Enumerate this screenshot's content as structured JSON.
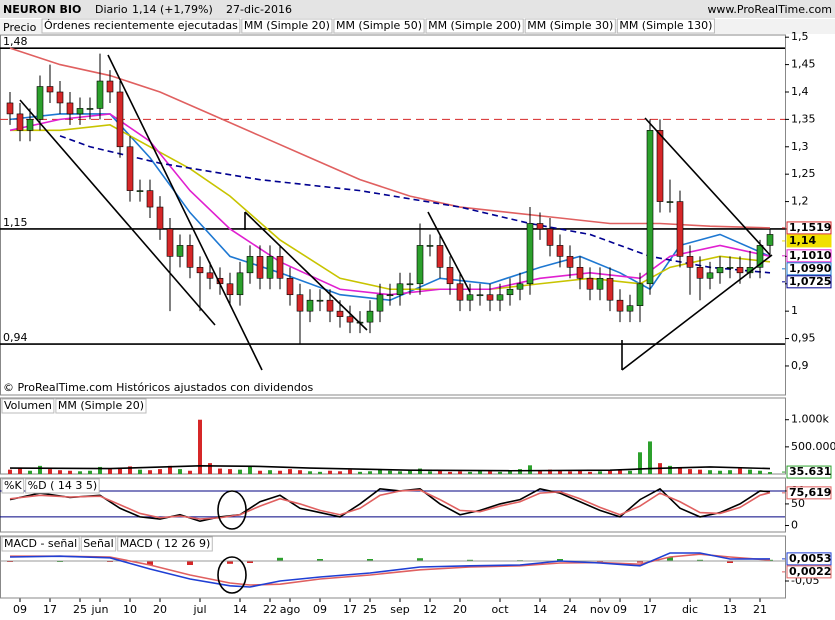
{
  "header": {
    "title": "NEURON BIO",
    "period": "Diario",
    "change": "1,14 (+1,79%)",
    "date": "27-dic-2016",
    "site": "www.ProRealTime.com"
  },
  "chart_data": [
    {
      "type": "candlestick",
      "legend_label": "Precio",
      "legend_extra": {
        "name": "Órdenes recientemente ejecutadas",
        "color": "#e06060"
      },
      "footnote": "© ProRealTime.com Históricos ajustados con dividendos",
      "categories": [
        null,
        "09",
        null,
        null,
        "17",
        null,
        null,
        "25",
        null,
        "jun",
        null,
        null,
        "10",
        null,
        null,
        "20",
        null,
        null,
        null,
        "jul",
        null,
        null,
        null,
        "14",
        null,
        null,
        "22",
        null,
        "ago",
        null,
        null,
        "09",
        null,
        null,
        "17",
        null,
        "25",
        null,
        null,
        "sep",
        null,
        null,
        "12",
        null,
        null,
        "20",
        null,
        null,
        null,
        "oct",
        null,
        null,
        null,
        "14",
        null,
        null,
        "24",
        null,
        null,
        "nov",
        null,
        "09",
        null,
        null,
        "17",
        null,
        null,
        null,
        "dic",
        null,
        null,
        null,
        "13",
        null,
        null,
        "21",
        null
      ],
      "open": [
        1.38,
        1.36,
        1.33,
        1.35,
        1.41,
        1.4,
        1.38,
        1.36,
        1.37,
        1.37,
        1.42,
        1.4,
        1.3,
        1.22,
        1.22,
        1.19,
        1.15,
        1.1,
        1.12,
        1.08,
        1.07,
        1.06,
        1.05,
        1.03,
        1.07,
        1.1,
        1.06,
        1.1,
        1.06,
        1.03,
        1.0,
        1.02,
        1.02,
        1.0,
        0.99,
        0.98,
        0.98,
        1.0,
        1.03,
        1.03,
        1.05,
        1.05,
        1.12,
        1.12,
        1.08,
        1.05,
        1.02,
        1.03,
        1.03,
        1.02,
        1.03,
        1.04,
        1.05,
        1.16,
        1.15,
        1.12,
        1.1,
        1.08,
        1.06,
        1.04,
        1.06,
        1.02,
        1.0,
        1.01,
        1.05,
        1.33,
        1.2,
        1.2,
        1.1,
        1.08,
        1.06,
        1.07,
        1.08,
        1.08,
        1.07,
        1.08,
        1.12
      ],
      "high": [
        1.4,
        1.38,
        1.37,
        1.43,
        1.45,
        1.42,
        1.4,
        1.39,
        1.39,
        1.47,
        1.44,
        1.42,
        1.32,
        1.24,
        1.24,
        1.21,
        1.17,
        1.14,
        1.14,
        1.1,
        1.09,
        1.08,
        1.07,
        1.09,
        1.12,
        1.12,
        1.12,
        1.12,
        1.08,
        1.05,
        1.04,
        1.04,
        1.04,
        1.02,
        1.01,
        1.0,
        1.02,
        1.05,
        1.05,
        1.07,
        1.07,
        1.16,
        1.14,
        1.14,
        1.1,
        1.07,
        1.05,
        1.05,
        1.05,
        1.05,
        1.06,
        1.07,
        1.19,
        1.18,
        1.17,
        1.14,
        1.12,
        1.1,
        1.08,
        1.08,
        1.08,
        1.04,
        1.03,
        1.07,
        1.35,
        1.35,
        1.24,
        1.22,
        1.12,
        1.1,
        1.09,
        1.1,
        1.1,
        1.1,
        1.11,
        1.13,
        1.15
      ],
      "low": [
        1.34,
        1.31,
        1.31,
        1.33,
        1.38,
        1.36,
        1.34,
        1.34,
        1.35,
        1.35,
        1.38,
        1.28,
        1.2,
        1.2,
        1.17,
        1.13,
        1.0,
        1.08,
        1.06,
        1.0,
        1.04,
        1.03,
        1.01,
        1.01,
        1.05,
        1.04,
        1.04,
        1.04,
        1.01,
        0.94,
        0.98,
        1.0,
        0.98,
        0.97,
        0.96,
        0.96,
        0.96,
        0.98,
        1.01,
        1.01,
        1.03,
        1.03,
        1.1,
        1.06,
        1.03,
        1.0,
        1.0,
        1.01,
        1.0,
        1.0,
        1.01,
        1.02,
        1.03,
        1.13,
        1.1,
        1.08,
        1.06,
        1.04,
        1.02,
        1.02,
        1.0,
        0.98,
        0.98,
        0.98,
        1.03,
        1.18,
        1.18,
        1.08,
        1.03,
        1.02,
        1.04,
        1.05,
        1.06,
        1.05,
        1.06,
        1.06,
        1.1
      ],
      "close": [
        1.36,
        1.33,
        1.35,
        1.41,
        1.4,
        1.38,
        1.36,
        1.37,
        1.37,
        1.42,
        1.4,
        1.3,
        1.22,
        1.22,
        1.19,
        1.15,
        1.1,
        1.12,
        1.08,
        1.07,
        1.06,
        1.05,
        1.03,
        1.07,
        1.1,
        1.06,
        1.1,
        1.06,
        1.03,
        1.0,
        1.02,
        1.02,
        1.0,
        0.99,
        0.98,
        0.98,
        1.0,
        1.03,
        1.03,
        1.05,
        1.05,
        1.12,
        1.12,
        1.08,
        1.05,
        1.02,
        1.03,
        1.03,
        1.02,
        1.03,
        1.04,
        1.05,
        1.16,
        1.15,
        1.12,
        1.1,
        1.08,
        1.06,
        1.04,
        1.06,
        1.02,
        1.0,
        1.01,
        1.05,
        1.33,
        1.2,
        1.2,
        1.1,
        1.08,
        1.06,
        1.07,
        1.08,
        1.08,
        1.07,
        1.08,
        1.12,
        1.14
      ],
      "up_color": "#2ca02c",
      "down_color": "#d62728",
      "ylim": [
        0.847,
        1.504
      ],
      "yticks": [
        {
          "value": 1.5,
          "label": "1,5"
        },
        {
          "value": 1.45,
          "label": "1,45"
        },
        {
          "value": 1.4,
          "label": "1,4"
        },
        {
          "value": 1.35,
          "label": "1,35"
        },
        {
          "value": 1.3,
          "label": "1,3"
        },
        {
          "value": 1.25,
          "label": "1,25"
        },
        {
          "value": 1.2,
          "label": "1,2"
        },
        {
          "value": 1.15,
          "label": "1,15"
        },
        {
          "value": 1.1,
          "label": "1,1"
        },
        {
          "value": 1.05,
          "label": "1,05"
        },
        1,
        {
          "value": 0.95,
          "label": "0,95"
        },
        {
          "value": 0.9,
          "label": "0,9"
        }
      ],
      "levels": [
        {
          "value": 1.48,
          "label": "1,48"
        },
        {
          "value": 1.15,
          "label": "1,15"
        },
        {
          "value": 0.94,
          "label": "0,94"
        }
      ],
      "dashed_level": {
        "value": 1.35,
        "color": "#d62728"
      },
      "series": [
        {
          "name": "MM (Simple 20)",
          "color": "#1e78d2",
          "x": [
            0,
            5,
            10,
            14,
            18,
            22,
            27,
            33,
            38,
            43,
            48,
            53,
            57,
            61,
            64,
            67,
            71,
            76
          ],
          "values": [
            1.35,
            1.36,
            1.36,
            1.28,
            1.18,
            1.1,
            1.07,
            1.03,
            1.02,
            1.06,
            1.05,
            1.08,
            1.1,
            1.07,
            1.04,
            1.12,
            1.14,
            1.1
          ]
        },
        {
          "name": "MM (Simple 50)",
          "color": "#c8c400",
          "x": [
            0,
            5,
            10,
            14,
            18,
            22,
            27,
            33,
            38,
            43,
            48,
            53,
            58,
            63,
            66,
            71,
            76
          ],
          "values": [
            1.33,
            1.33,
            1.34,
            1.3,
            1.26,
            1.21,
            1.13,
            1.06,
            1.04,
            1.04,
            1.04,
            1.05,
            1.06,
            1.05,
            1.08,
            1.1,
            1.09
          ]
        },
        {
          "name": "MM (Simple 200)",
          "color": "#e06060",
          "x": [
            0,
            5,
            10,
            15,
            20,
            25,
            30,
            35,
            40,
            45,
            50,
            55,
            60,
            65,
            70,
            76
          ],
          "values": [
            1.48,
            1.45,
            1.43,
            1.4,
            1.36,
            1.32,
            1.28,
            1.24,
            1.21,
            1.19,
            1.18,
            1.17,
            1.16,
            1.16,
            1.155,
            1.152
          ]
        },
        {
          "name": "MM (Simple 30)",
          "color": "#e020d0",
          "x": [
            0,
            5,
            10,
            14,
            18,
            22,
            27,
            33,
            38,
            43,
            48,
            53,
            58,
            63,
            66,
            71,
            76
          ],
          "values": [
            1.33,
            1.35,
            1.36,
            1.31,
            1.22,
            1.15,
            1.09,
            1.04,
            1.03,
            1.04,
            1.04,
            1.06,
            1.07,
            1.06,
            1.1,
            1.12,
            1.1
          ]
        },
        {
          "name": "MM (Simple 130)",
          "color": "#000090",
          "dash": true,
          "x": [
            5,
            8,
            15,
            25,
            35,
            45,
            52,
            58,
            64,
            70,
            76
          ],
          "values": [
            1.32,
            1.3,
            1.27,
            1.24,
            1.22,
            1.19,
            1.16,
            1.14,
            1.1,
            1.08,
            1.07
          ]
        }
      ],
      "value_labels": [
        {
          "value": 1.1519,
          "label": "1,1519",
          "color": "#d62728"
        },
        {
          "value": 1.14,
          "label": "1,14",
          "color": "#f0e000"
        },
        {
          "value": 1.101,
          "label": "1,1010",
          "color": "#e020d0"
        },
        {
          "value": 1.099,
          "label": "1,0990",
          "color": "#1e78d2"
        },
        {
          "value": 1.0725,
          "label": "1,0725",
          "color": "#000090"
        }
      ]
    },
    {
      "type": "bar",
      "legend_label": "Volumen",
      "values": [
        80000,
        120000,
        60000,
        150000,
        90000,
        70000,
        60000,
        50000,
        60000,
        130000,
        90000,
        120000,
        140000,
        80000,
        70000,
        90000,
        150000,
        90000,
        60000,
        1000000,
        200000,
        100000,
        90000,
        80000,
        150000,
        60000,
        70000,
        60000,
        90000,
        70000,
        50000,
        40000,
        60000,
        50000,
        80000,
        40000,
        50000,
        90000,
        60000,
        50000,
        60000,
        100000,
        50000,
        60000,
        40000,
        50000,
        40000,
        60000,
        50000,
        40000,
        50000,
        90000,
        160000,
        70000,
        80000,
        60000,
        50000,
        60000,
        40000,
        50000,
        80000,
        70000,
        60000,
        400000,
        600000,
        200000,
        150000,
        120000,
        90000,
        80000,
        70000,
        60000,
        70000,
        100000,
        80000,
        60000,
        35631
      ],
      "series": [
        {
          "name": "MM (Simple 20)",
          "color": "#000000",
          "x": [
            0,
            10,
            19,
            25,
            30,
            40,
            50,
            60,
            64,
            70,
            76
          ],
          "values": [
            110000,
            100000,
            150000,
            140000,
            110000,
            70000,
            60000,
            70000,
            100000,
            130000,
            100000
          ]
        }
      ],
      "ylim": [
        0,
        1400000
      ],
      "yticks": [
        {
          "value": 1000000,
          "label": "1.000k"
        },
        {
          "value": 500000,
          "label": "500.000"
        }
      ],
      "value_labels": [
        {
          "value": 35631,
          "label": "35.631",
          "color": "#2ca02c"
        }
      ]
    },
    {
      "type": "line",
      "x": [
        0,
        3,
        6,
        9,
        11,
        13,
        15,
        17,
        19,
        21,
        23,
        25,
        27,
        29,
        31,
        33,
        35,
        37,
        39,
        41,
        43,
        45,
        47,
        49,
        51,
        53,
        55,
        57,
        59,
        61,
        63,
        65,
        67,
        69,
        71,
        73,
        75,
        76
      ],
      "series": [
        {
          "name": "%K",
          "color": "#000000",
          "values": [
            60,
            75,
            65,
            70,
            40,
            20,
            15,
            25,
            10,
            20,
            25,
            55,
            70,
            40,
            30,
            20,
            50,
            85,
            80,
            85,
            50,
            25,
            35,
            50,
            60,
            85,
            75,
            55,
            35,
            20,
            60,
            85,
            40,
            20,
            30,
            50,
            80,
            78
          ]
        },
        {
          "name": "%D ( 14 3 5)",
          "color": "#e06060",
          "values": [
            62,
            70,
            66,
            68,
            48,
            28,
            18,
            22,
            15,
            18,
            25,
            45,
            62,
            50,
            35,
            25,
            40,
            70,
            80,
            82,
            60,
            35,
            32,
            45,
            55,
            75,
            78,
            62,
            42,
            25,
            45,
            75,
            55,
            30,
            28,
            42,
            70,
            76
          ]
        }
      ],
      "ylim": [
        -15,
        110
      ],
      "yticks": [
        80,
        50,
        0
      ],
      "bands": [
        80,
        20
      ],
      "value_labels": [
        {
          "value": 75.619,
          "label": "75,619",
          "color": "#e06060"
        }
      ]
    },
    {
      "type": "line",
      "x": [
        0,
        5,
        10,
        14,
        18,
        22,
        24,
        27,
        31,
        36,
        41,
        46,
        51,
        55,
        59,
        63,
        66,
        69,
        72,
        76
      ],
      "histogram": {
        "name": "MACD - señal",
        "color": "#2ca02c",
        "down_color": "#d62728",
        "values": [
          -0.002,
          0,
          -0.002,
          -0.01,
          -0.01,
          -0.007,
          -0.005,
          0.008,
          0.005,
          0.005,
          0.007,
          0.003,
          0.002,
          0.005,
          -0.001,
          -0.004,
          0.01,
          0.003,
          -0.005,
          0.003
        ]
      },
      "series": [
        {
          "name": "Señal",
          "color": "#e06060",
          "values": [
            0.012,
            0.012,
            0.01,
            -0.01,
            -0.035,
            -0.055,
            -0.06,
            -0.058,
            -0.045,
            -0.035,
            -0.022,
            -0.015,
            -0.012,
            -0.005,
            -0.004,
            -0.008,
            0.01,
            0.017,
            0.01,
            0.0022
          ]
        },
        {
          "name": "MACD ( 12 26 9)",
          "color": "#1f3fd4",
          "values": [
            0.01,
            0.012,
            0.008,
            -0.02,
            -0.045,
            -0.062,
            -0.065,
            -0.05,
            -0.04,
            -0.03,
            -0.015,
            -0.012,
            -0.01,
            0,
            -0.005,
            -0.012,
            0.02,
            0.02,
            0.005,
            0.0053
          ]
        }
      ],
      "ylim": [
        -0.0925,
        0.0625
      ],
      "yticks": [
        {
          "value": -0.05,
          "label": "-0,05"
        }
      ],
      "value_labels": [
        {
          "value": 0.0053,
          "label": "0,0053",
          "color": "#1f3fd4"
        },
        {
          "value": 0.0022,
          "label": "0,0022",
          "color": "#e06060"
        }
      ]
    }
  ]
}
